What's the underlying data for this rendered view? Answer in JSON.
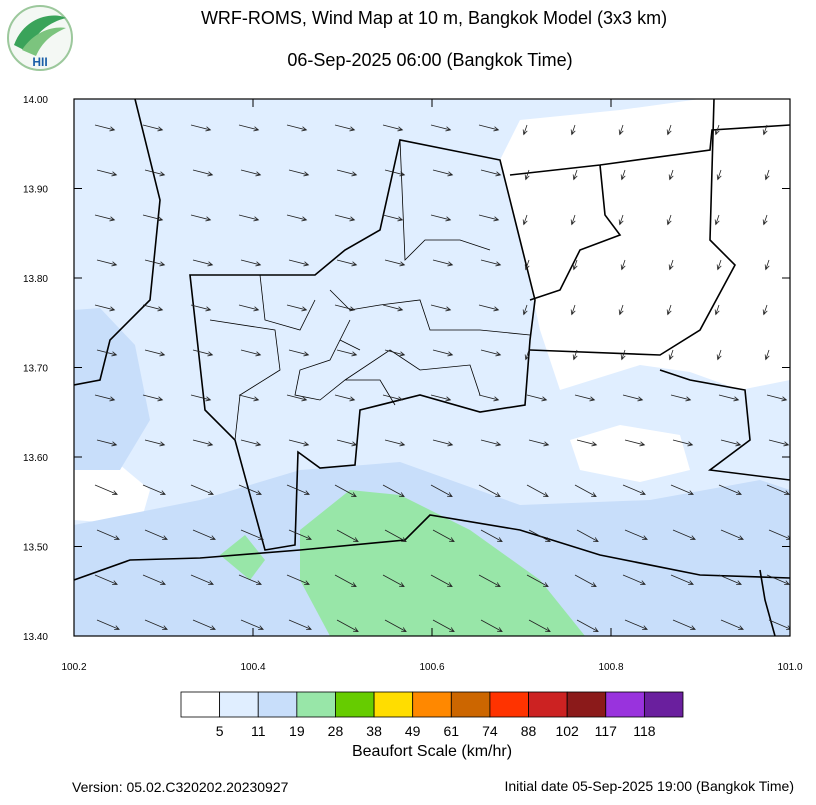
{
  "header": {
    "title": "WRF-ROMS, Wind Map at 10 m, Bangkok Model (3x3 km)",
    "subtitle": "06-Sep-2025 06:00 (Bangkok Time)",
    "logo_text": "HII"
  },
  "map": {
    "xlim": [
      100.2,
      101.0
    ],
    "ylim": [
      13.4,
      14.0
    ],
    "xticks": [
      100.2,
      100.4,
      100.6,
      100.8,
      {
        "value": 101.0,
        "label": "101.0"
      }
    ],
    "yticks": [
      {
        "value": 13.4,
        "label": "13.40"
      },
      {
        "value": 13.5,
        "label": "13.50"
      },
      {
        "value": 13.6,
        "label": "13.60"
      },
      {
        "value": 13.7,
        "label": "13.70"
      },
      {
        "value": 13.8,
        "label": "13.80"
      },
      {
        "value": 13.9,
        "label": "13.90"
      },
      {
        "value": 14.0,
        "label": "14.00"
      }
    ]
  },
  "colorbar": {
    "title": "Beaufort Scale (km/hr)",
    "colors": [
      "#ffffff",
      "#e0eeff",
      "#c8defa",
      "#98e6a8",
      "#66cc00",
      "#ffdd00",
      "#ff8800",
      "#cc6600",
      "#ff3300",
      "#cc2222",
      "#8b1a1a",
      "#9933dd",
      "#6a1f9e"
    ],
    "labels": [
      5,
      11,
      19,
      28,
      38,
      49,
      61,
      74,
      88,
      102,
      117,
      118
    ]
  },
  "footer": {
    "version": "Version: 05.02.C320202.20230927",
    "initial": "Initial date 05-Sep-2025 19:00 (Bangkok Time)"
  }
}
